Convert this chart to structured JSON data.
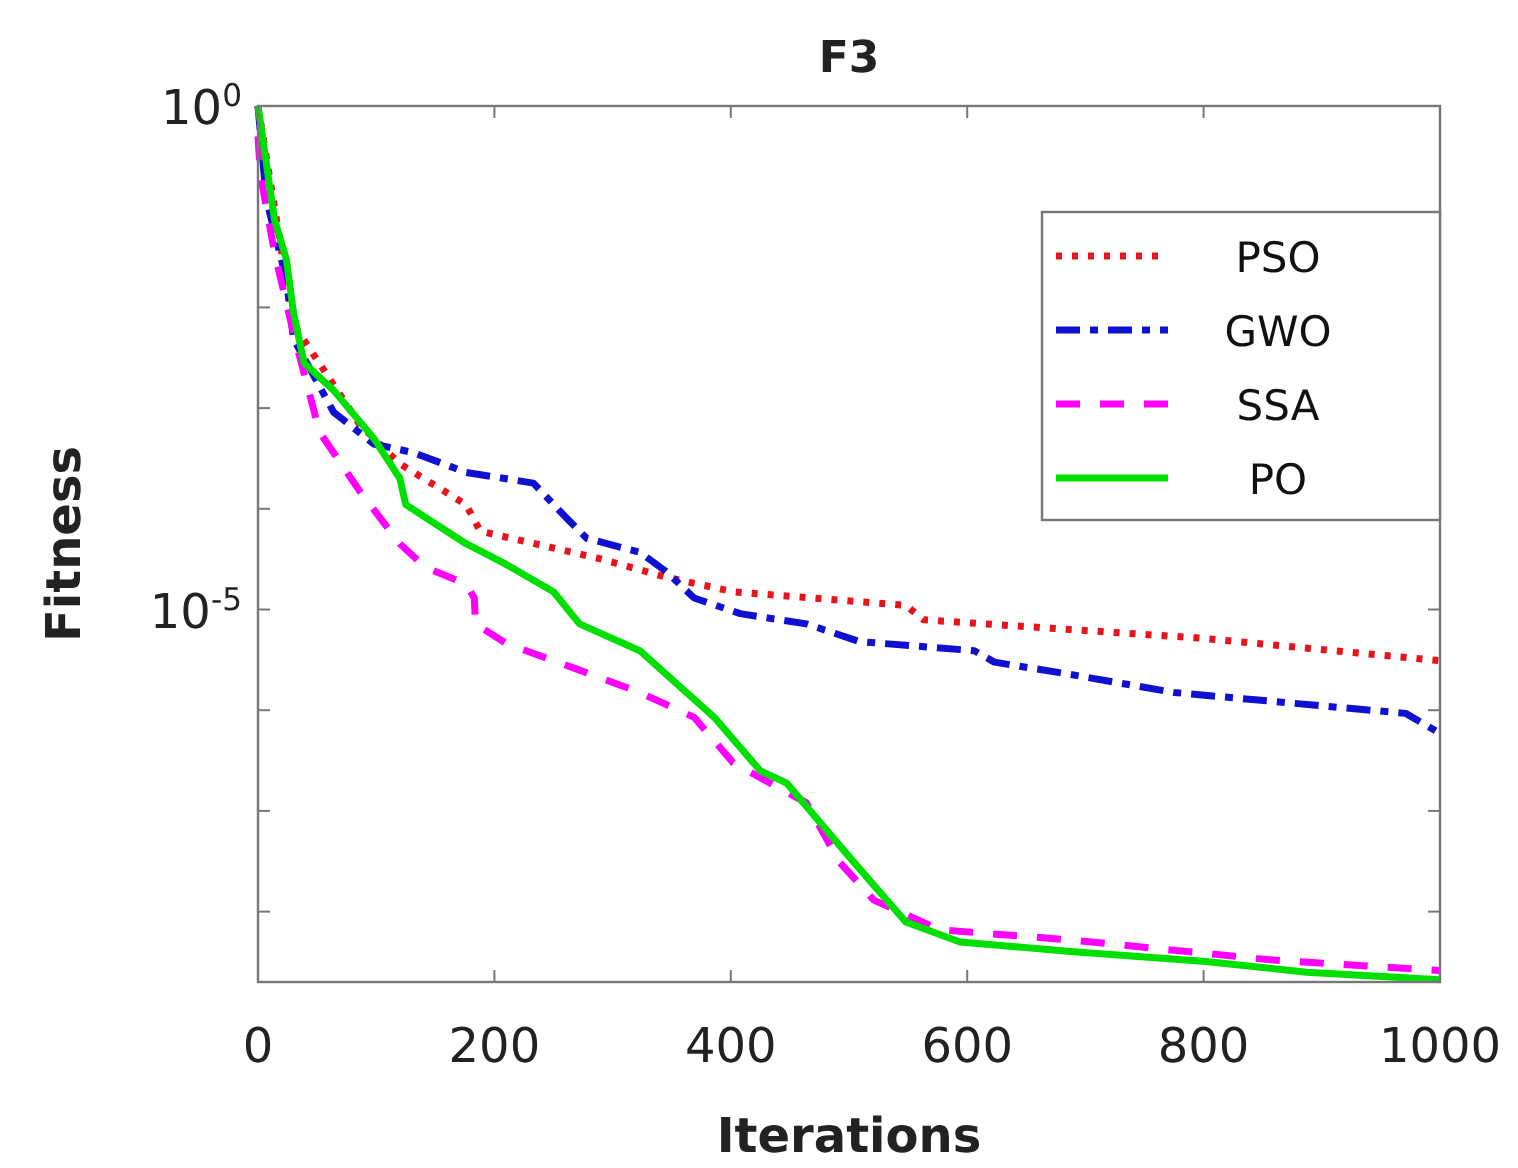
{
  "chart_data": {
    "type": "line",
    "title": "F3",
    "xlabel": "Iterations",
    "ylabel": "Fitness",
    "log": "y",
    "xlim": [
      0,
      1000
    ],
    "xticks": [
      0,
      200,
      400,
      600,
      800,
      1000
    ],
    "ylim": [
      2e-09,
      1
    ],
    "yticks": [
      {
        "value": 1,
        "label": "10$^{0}$"
      },
      {
        "value": 0.01,
        "label": null
      },
      {
        "value": 0.001,
        "label": null
      },
      {
        "value": 0.0001,
        "label": null
      },
      {
        "value": 1e-05,
        "label": "10$^{-5}$"
      },
      {
        "value": 1e-06,
        "label": null
      },
      {
        "value": 1e-07,
        "label": null
      },
      {
        "value": 1e-08,
        "label": null
      }
    ],
    "grid": false,
    "legend": "top right",
    "marker": "none",
    "series": [
      {
        "name": "PSO",
        "color": "#e8141c",
        "line_style": "dotted",
        "x": [
          0,
          30,
          64,
          86,
          120,
          176,
          188,
          289,
          345,
          402,
          548,
          563,
          797,
          1000
        ],
        "values": [
          1,
          0.0068,
          0.0017,
          0.00069,
          0.00028,
          0.00011,
          6e-05,
          3.2e-05,
          2.1e-05,
          1.5e-05,
          1.1e-05,
          7.9e-06,
          5.2e-06,
          3.1e-06
        ]
      },
      {
        "name": "GWO",
        "color": "#1010d0",
        "line_style": "dashdot",
        "x": [
          0,
          7,
          24,
          30,
          64,
          98,
          132,
          176,
          233,
          261,
          278,
          323,
          345,
          369,
          408,
          464,
          509,
          606,
          623,
          684,
          775,
          971,
          1000
        ],
        "values": [
          1,
          0.12,
          0.019,
          0.0049,
          0.00091,
          0.00044,
          0.00036,
          0.00023,
          0.00018,
          8.1e-05,
          5.1e-05,
          3.7e-05,
          2.4e-05,
          1.3e-05,
          9.1e-06,
          7.2e-06,
          4.8e-06,
          3.9e-06,
          3e-06,
          2.3e-06,
          1.5e-06,
          9.3e-07,
          5.9e-07
        ]
      },
      {
        "name": "SSA",
        "color": "#ff00ff",
        "line_style": "dashed",
        "x": [
          0,
          2,
          14,
          30,
          52,
          86,
          120,
          142,
          176,
          183,
          184,
          210,
          272,
          323,
          369,
          402,
          464,
          492,
          521,
          577,
          690,
          859,
          1000
        ],
        "values": [
          0.5,
          0.21,
          0.035,
          0.0056,
          0.00058,
          0.00015,
          4.5e-05,
          2.6e-05,
          1.8e-05,
          1.3e-05,
          7.2e-06,
          4.6e-06,
          2.5e-06,
          1.5e-06,
          8.5e-07,
          3e-07,
          1.2e-07,
          3.1e-08,
          1.3e-08,
          6.6e-09,
          5.2e-09,
          3.3e-09,
          2.6e-09
        ]
      },
      {
        "name": "PO",
        "color": "#00e000",
        "line_style": "solid",
        "x": [
          0,
          14,
          24,
          30,
          39,
          64,
          98,
          120,
          125,
          176,
          210,
          250,
          272,
          323,
          386,
          425,
          447,
          504,
          548,
          594,
          690,
          802,
          887,
          1000
        ],
        "values": [
          1,
          0.074,
          0.03,
          0.0089,
          0.0028,
          0.0015,
          0.0005,
          0.0002,
          0.00011,
          4.5e-05,
          2.8e-05,
          1.5e-05,
          7.2e-06,
          3.9e-06,
          8.5e-07,
          2.5e-07,
          1.9e-07,
          3.1e-08,
          7.9e-09,
          5e-09,
          4e-09,
          3.2e-09,
          2.5e-09,
          2.1e-09
        ]
      }
    ]
  }
}
